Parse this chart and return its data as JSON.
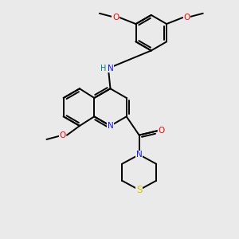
{
  "bg": "#eaeaea",
  "lw": 1.4,
  "fs": 7.5,
  "atom_colors": {
    "N": "#1515ff",
    "O": "#ff0000",
    "S": "#cccc00",
    "NH": "#008080",
    "C": "#000000"
  },
  "xlim": [
    -2.2,
    2.8
  ],
  "ylim": [
    -3.2,
    2.4
  ]
}
